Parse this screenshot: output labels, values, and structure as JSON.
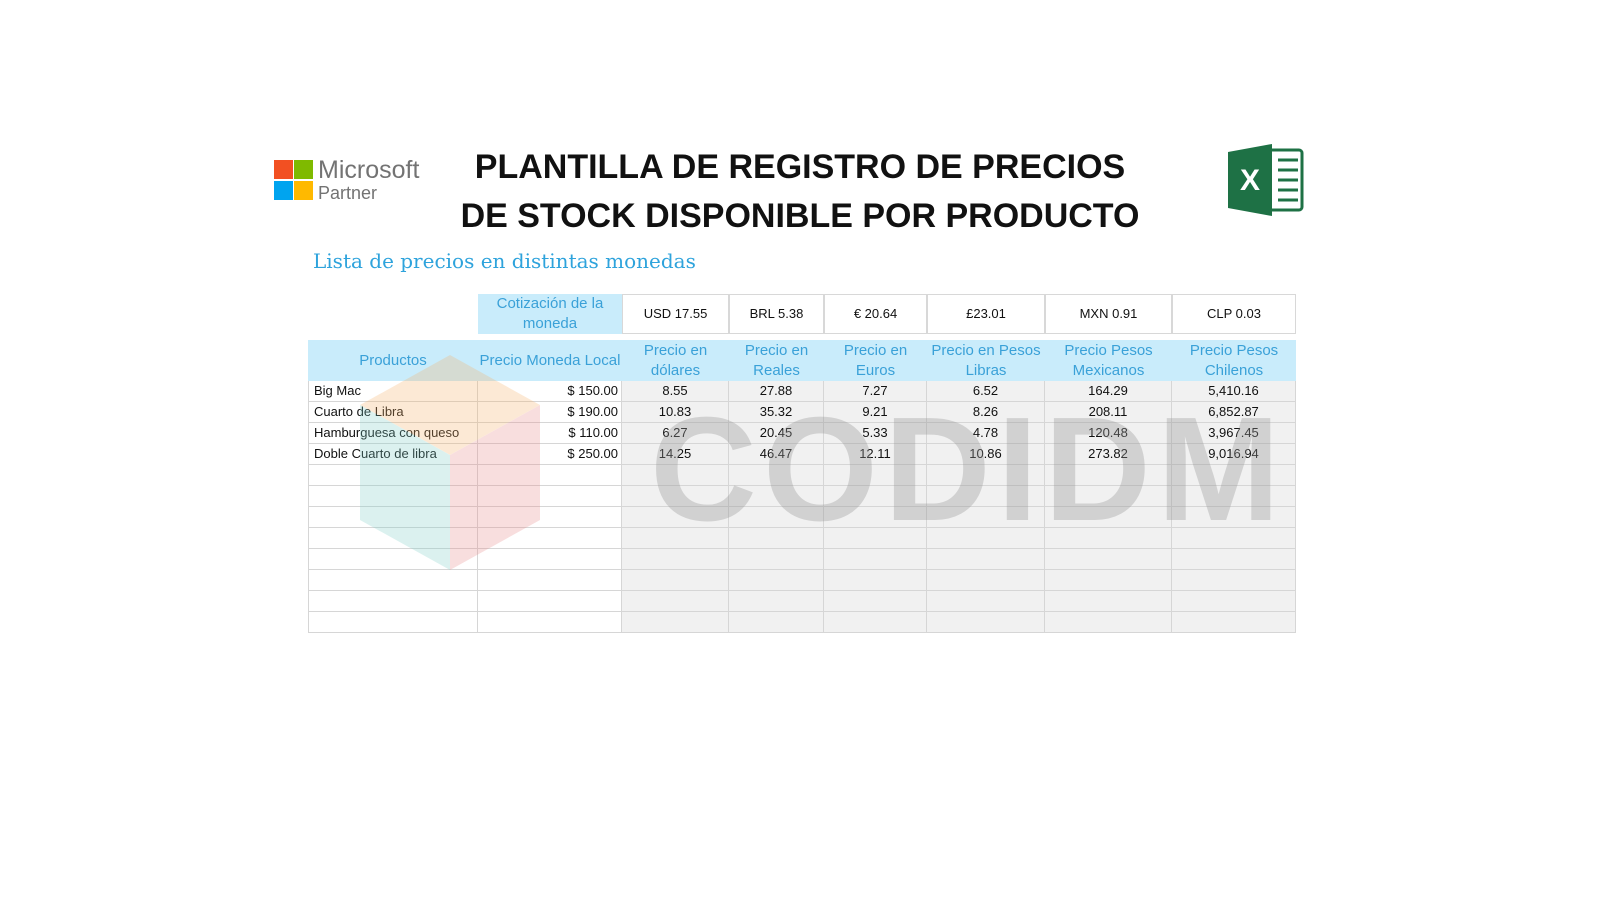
{
  "header": {
    "partner_logo": {
      "name": "Microsoft",
      "sub": "Partner",
      "colors": [
        "#f25022",
        "#7fba00",
        "#00a4ef",
        "#ffb900"
      ]
    },
    "title_line1": "PLANTILLA DE REGISTRO DE PRECIOS",
    "title_line2": "DE STOCK DISPONIBLE POR PRODUCTO",
    "excel_icon": "excel-icon",
    "excel_letter": "X"
  },
  "subtitle": "Lista de precios en distintas monedas",
  "rates": {
    "label": "Cotización de la moneda",
    "values": [
      "USD 17.55",
      "BRL 5.38",
      "€ 20.64",
      "£23.01",
      "MXN 0.91",
      "CLP 0.03"
    ]
  },
  "table": {
    "columns": [
      "Productos",
      "Precio Moneda Local",
      "Precio en dólares",
      "Precio en Reales",
      "Precio en Euros",
      "Precio en Pesos Libras",
      "Precio Pesos Mexicanos",
      "Precio Pesos Chilenos"
    ],
    "rows": [
      [
        "Big Mac",
        "$ 150.00",
        "8.55",
        "27.88",
        "7.27",
        "6.52",
        "164.29",
        "5,410.16"
      ],
      [
        "Cuarto de Libra",
        "$ 190.00",
        "10.83",
        "35.32",
        "9.21",
        "8.26",
        "208.11",
        "6,852.87"
      ],
      [
        "Hamburguesa con queso",
        "$ 110.00",
        "6.27",
        "20.45",
        "5.33",
        "4.78",
        "120.48",
        "3,967.45"
      ],
      [
        "Doble Cuarto de libra",
        "$ 250.00",
        "14.25",
        "46.47",
        "12.11",
        "10.86",
        "273.82",
        "9,016.94"
      ]
    ],
    "empty_rows": 8
  },
  "watermark": "CODIDM",
  "colors": {
    "header_bg": "#c9ecfb",
    "header_text": "#3aa1d8",
    "subtitle": "#2ea3dc",
    "excel_green": "#1e7145"
  }
}
